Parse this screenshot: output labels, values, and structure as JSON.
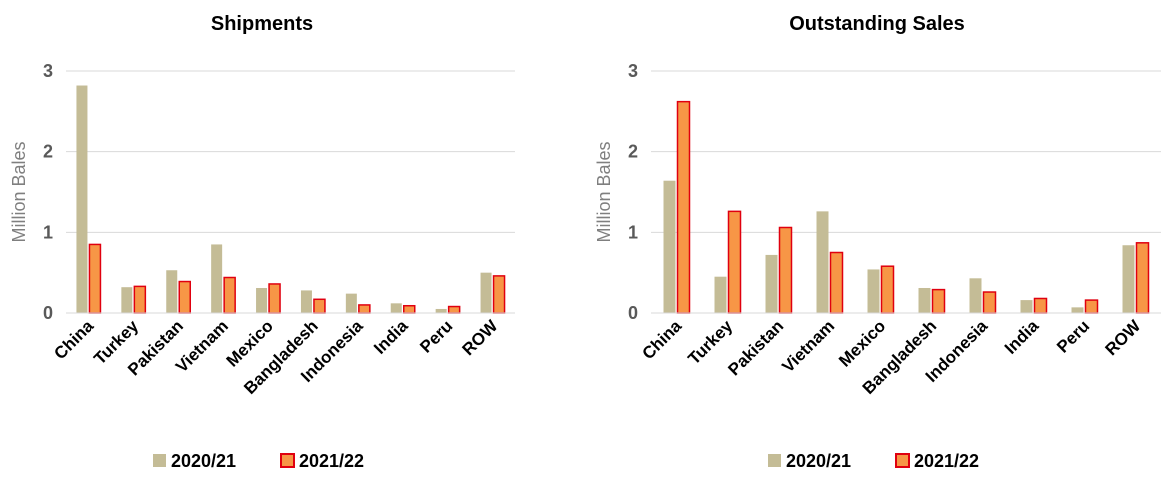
{
  "colors": {
    "series_2020_21": "#c4bc96",
    "series_2021_22_fill": "#f79646",
    "series_2021_22_border": "#e0000f",
    "gridline": "#d9d9d9"
  },
  "chart_data": [
    {
      "type": "bar",
      "title": "Shipments",
      "ylabel": "Million Bales",
      "xlabel": "",
      "ylim": [
        0,
        3
      ],
      "yticks": [
        "0",
        "1",
        "2",
        "3"
      ],
      "grid": true,
      "legend_position": "bottom",
      "categories": [
        "China",
        "Turkey",
        "Pakistan",
        "Vietnam",
        "Mexico",
        "Bangladesh",
        "Indonesia",
        "India",
        "Peru",
        "ROW"
      ],
      "series": [
        {
          "name": "2020/21",
          "values": [
            2.82,
            0.32,
            0.53,
            0.85,
            0.31,
            0.28,
            0.24,
            0.12,
            0.05,
            0.5
          ]
        },
        {
          "name": "2021/22",
          "values": [
            0.85,
            0.33,
            0.39,
            0.44,
            0.36,
            0.17,
            0.1,
            0.09,
            0.08,
            0.46
          ]
        }
      ]
    },
    {
      "type": "bar",
      "title": "Outstanding Sales",
      "ylabel": "Million Bales",
      "xlabel": "",
      "ylim": [
        0,
        3
      ],
      "yticks": [
        "0",
        "1",
        "2",
        "3"
      ],
      "grid": true,
      "legend_position": "bottom",
      "categories": [
        "China",
        "Turkey",
        "Pakistan",
        "Vietnam",
        "Mexico",
        "Bangladesh",
        "Indonesia",
        "India",
        "Peru",
        "ROW"
      ],
      "series": [
        {
          "name": "2020/21",
          "values": [
            1.64,
            0.45,
            0.72,
            1.26,
            0.54,
            0.31,
            0.43,
            0.16,
            0.07,
            0.84
          ]
        },
        {
          "name": "2021/22",
          "values": [
            2.62,
            1.26,
            1.06,
            0.75,
            0.58,
            0.29,
            0.26,
            0.18,
            0.16,
            0.87
          ]
        }
      ]
    }
  ]
}
